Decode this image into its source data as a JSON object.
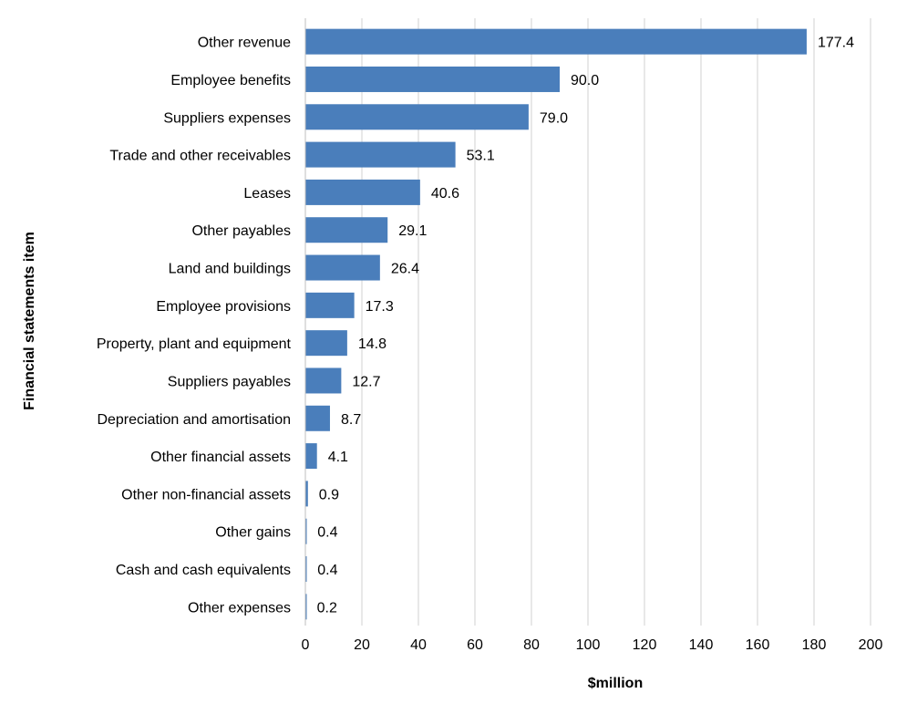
{
  "chart_data": {
    "type": "bar",
    "orientation": "horizontal",
    "title": "",
    "xlabel": "$million",
    "ylabel": "Financial statements item",
    "xlim": [
      0,
      200
    ],
    "xticks": [
      0,
      20,
      40,
      60,
      80,
      100,
      120,
      140,
      160,
      180,
      200
    ],
    "grid": "vertical gridlines",
    "legend": "none",
    "bar_color": "#4a7ebb",
    "categories": [
      "Other revenue",
      "Employee benefits",
      "Suppliers expenses",
      "Trade and other receivables",
      "Leases",
      "Other payables",
      "Land and buildings",
      "Employee provisions",
      "Property, plant and equipment",
      "Suppliers payables",
      "Depreciation and amortisation",
      "Other financial assets",
      "Other non-financial assets",
      "Other gains",
      "Cash and cash equivalents",
      "Other expenses"
    ],
    "values": [
      177.4,
      90.0,
      79.0,
      53.1,
      40.6,
      29.1,
      26.4,
      17.3,
      14.8,
      12.7,
      8.7,
      4.1,
      0.9,
      0.4,
      0.4,
      0.2
    ],
    "value_labels": [
      "177.4",
      "90.0",
      "79.0",
      "53.1",
      "40.6",
      "29.1",
      "26.4",
      "17.3",
      "14.8",
      "12.7",
      "8.7",
      "4.1",
      "0.9",
      "0.4",
      "0.4",
      "0.2"
    ]
  }
}
